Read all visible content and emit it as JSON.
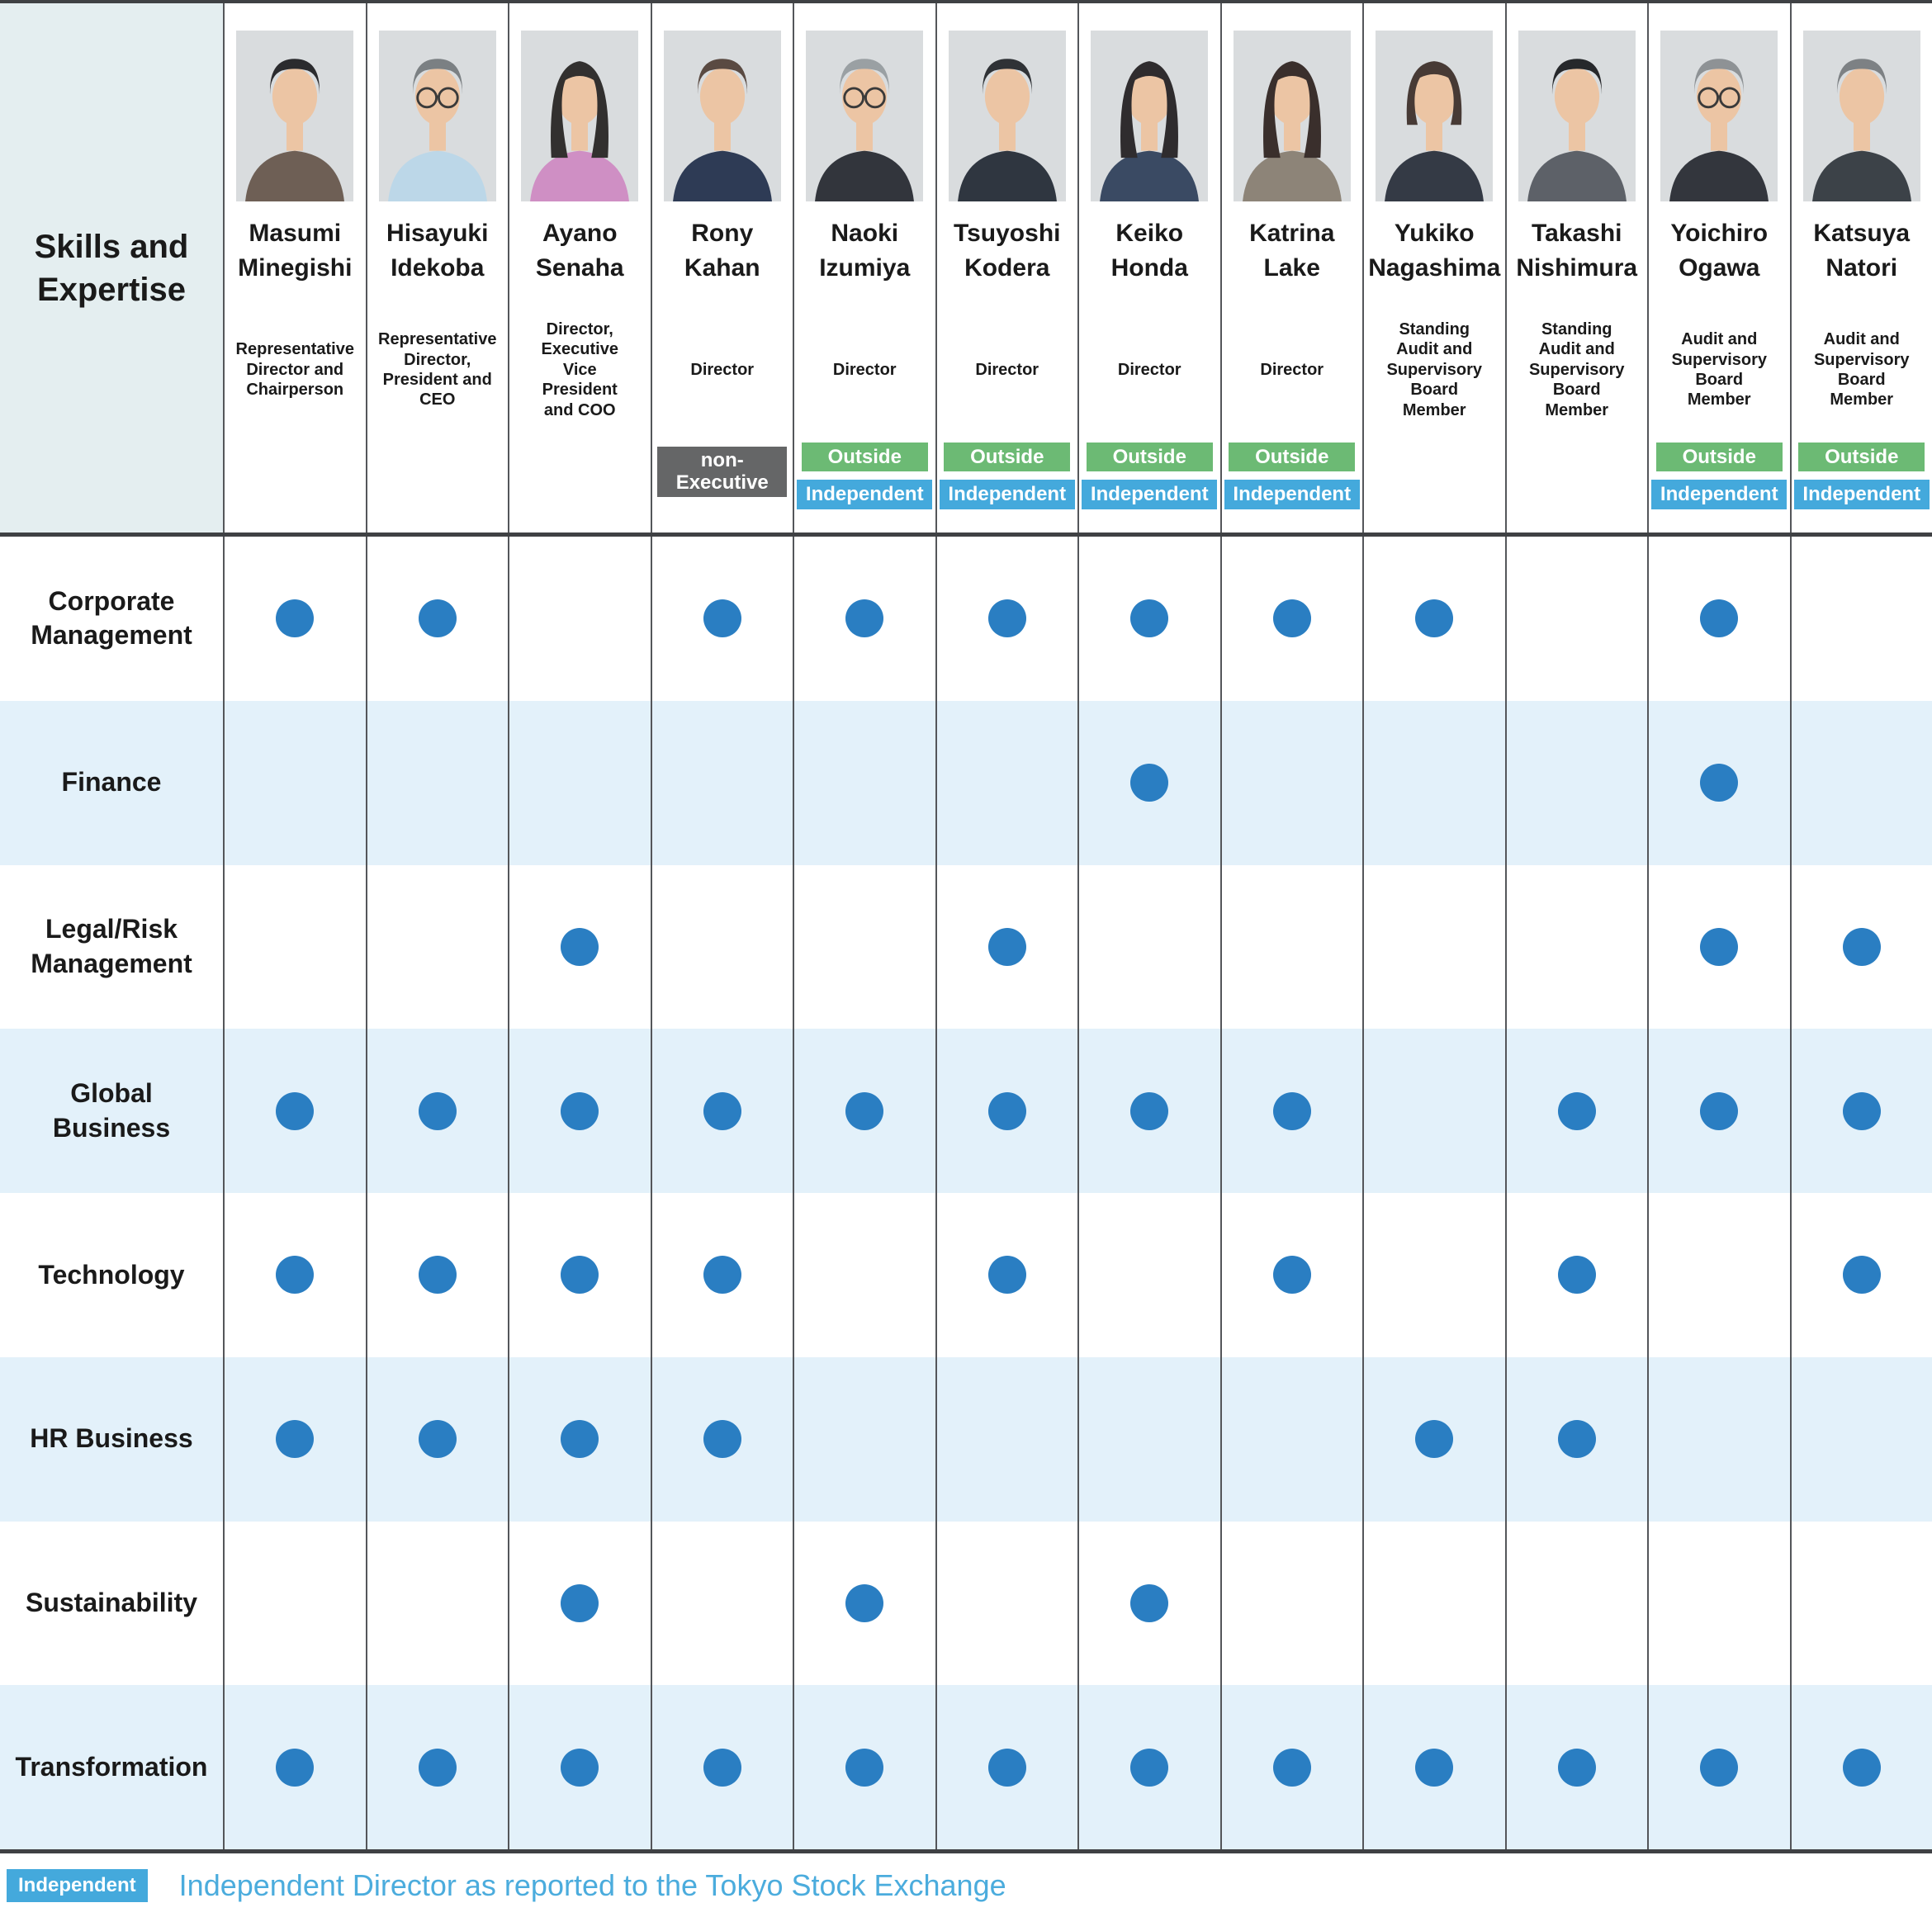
{
  "title": "Skills and Expertise",
  "badge_labels": {
    "outside": "Outside",
    "independent": "Independent",
    "non_executive_lines": [
      "non-",
      "Executive"
    ]
  },
  "members": [
    {
      "name": "Masumi Minegishi",
      "name_lines": [
        "Masumi",
        "Minegishi"
      ],
      "title": "Representative Director and Chairperson",
      "title_lines": [
        "Representative",
        "Director and",
        "Chairperson"
      ],
      "badges": [],
      "photo": {
        "hair": "#2B2B2E",
        "hairstyle": "short",
        "suit": "#6E5F55",
        "glasses": false
      }
    },
    {
      "name": "Hisayuki Idekoba",
      "name_lines": [
        "Hisayuki",
        "Idekoba"
      ],
      "title": "Representative Director, President and CEO",
      "title_lines": [
        "Representative",
        "Director,",
        "President and",
        "CEO"
      ],
      "badges": [],
      "photo": {
        "hair": "#7B8083",
        "hairstyle": "short",
        "suit": "#BCD7E8",
        "glasses": true
      }
    },
    {
      "name": "Ayano Senaha",
      "name_lines": [
        "Ayano",
        "Senaha"
      ],
      "title": "Director, Executive Vice President and COO",
      "title_lines": [
        "Director,",
        "Executive",
        "Vice",
        "President",
        "and COO"
      ],
      "badges": [],
      "photo": {
        "hair": "#32302F",
        "hairstyle": "long",
        "suit": "#CF8FC4",
        "glasses": false
      }
    },
    {
      "name": "Rony Kahan",
      "name_lines": [
        "Rony",
        "Kahan"
      ],
      "title": "Director",
      "title_lines": [
        "Director"
      ],
      "badges": [
        "non_executive"
      ],
      "photo": {
        "hair": "#5A4A42",
        "hairstyle": "short",
        "suit": "#2E3B55",
        "glasses": false
      }
    },
    {
      "name": "Naoki Izumiya",
      "name_lines": [
        "Naoki",
        "Izumiya"
      ],
      "title": "Director",
      "title_lines": [
        "Director"
      ],
      "badges": [
        "outside",
        "independent"
      ],
      "photo": {
        "hair": "#9AA0A3",
        "hairstyle": "short",
        "suit": "#32353C",
        "glasses": true
      }
    },
    {
      "name": "Tsuyoshi Kodera",
      "name_lines": [
        "Tsuyoshi",
        "Kodera"
      ],
      "title": "Director",
      "title_lines": [
        "Director"
      ],
      "badges": [
        "outside",
        "independent"
      ],
      "photo": {
        "hair": "#2F3236",
        "hairstyle": "short",
        "suit": "#2F3640",
        "glasses": false
      }
    },
    {
      "name": "Keiko Honda",
      "name_lines": [
        "Keiko",
        "Honda"
      ],
      "title": "Director",
      "title_lines": [
        "Director"
      ],
      "badges": [
        "outside",
        "independent"
      ],
      "photo": {
        "hair": "#2F2C2E",
        "hairstyle": "long",
        "suit": "#3A4A63",
        "glasses": false
      }
    },
    {
      "name": "Katrina Lake",
      "name_lines": [
        "Katrina",
        "Lake"
      ],
      "title": "Director",
      "title_lines": [
        "Director"
      ],
      "badges": [
        "outside",
        "independent"
      ],
      "photo": {
        "hair": "#3A2F2C",
        "hairstyle": "long",
        "suit": "#8D8478",
        "glasses": false
      }
    },
    {
      "name": "Yukiko Nagashima",
      "name_lines": [
        "Yukiko",
        "Nagashima"
      ],
      "title": "Standing Audit and Supervisory Board Member",
      "title_lines": [
        "Standing",
        "Audit and",
        "Supervisory",
        "Board",
        "Member"
      ],
      "badges": [],
      "photo": {
        "hair": "#473A35",
        "hairstyle": "bob",
        "suit": "#343A45",
        "glasses": false
      }
    },
    {
      "name": "Takashi Nishimura",
      "name_lines": [
        "Takashi",
        "Nishimura"
      ],
      "title": "Standing Audit and Supervisory Board Member",
      "title_lines": [
        "Standing",
        "Audit and",
        "Supervisory",
        "Board",
        "Member"
      ],
      "badges": [],
      "photo": {
        "hair": "#26282B",
        "hairstyle": "short",
        "suit": "#5D6168",
        "glasses": false
      }
    },
    {
      "name": "Yoichiro Ogawa",
      "name_lines": [
        "Yoichiro",
        "Ogawa"
      ],
      "title": "Audit and Supervisory Board Member",
      "title_lines": [
        "Audit and",
        "Supervisory",
        "Board",
        "Member"
      ],
      "badges": [
        "outside",
        "independent"
      ],
      "photo": {
        "hair": "#8E9295",
        "hairstyle": "short",
        "suit": "#33363D",
        "glasses": true
      }
    },
    {
      "name": "Katsuya Natori",
      "name_lines": [
        "Katsuya",
        "Natori"
      ],
      "title": "Audit and Supervisory Board Member",
      "title_lines": [
        "Audit and",
        "Supervisory",
        "Board",
        "Member"
      ],
      "badges": [
        "outside",
        "independent"
      ],
      "photo": {
        "hair": "#7D8184",
        "hairstyle": "short",
        "suit": "#3C4248",
        "glasses": false
      }
    }
  ],
  "skills": [
    {
      "label": "Corporate Management",
      "label_lines": [
        "Corporate",
        "Management"
      ]
    },
    {
      "label": "Finance",
      "label_lines": [
        "Finance"
      ]
    },
    {
      "label": "Legal/Risk Management",
      "label_lines": [
        "Legal/Risk",
        "Management"
      ]
    },
    {
      "label": "Global Business",
      "label_lines": [
        "Global",
        "Business"
      ]
    },
    {
      "label": "Technology",
      "label_lines": [
        "Technology"
      ]
    },
    {
      "label": "HR Business",
      "label_lines": [
        "HR Business"
      ]
    },
    {
      "label": "Sustainability",
      "label_lines": [
        "Sustainability"
      ]
    },
    {
      "label": "Transformation",
      "label_lines": [
        "Transformation"
      ]
    }
  ],
  "chart_data": {
    "type": "table",
    "title": "Skills and Expertise",
    "columns": [
      "Masumi Minegishi",
      "Hisayuki Idekoba",
      "Ayano Senaha",
      "Rony Kahan",
      "Naoki Izumiya",
      "Tsuyoshi Kodera",
      "Keiko Honda",
      "Katrina Lake",
      "Yukiko Nagashima",
      "Takashi Nishimura",
      "Yoichiro Ogawa",
      "Katsuya Natori"
    ],
    "rows": [
      "Corporate Management",
      "Finance",
      "Legal/Risk Management",
      "Global Business",
      "Technology",
      "HR Business",
      "Sustainability",
      "Transformation"
    ],
    "matrix": [
      [
        1,
        1,
        0,
        1,
        1,
        1,
        1,
        1,
        1,
        0,
        1,
        0
      ],
      [
        0,
        0,
        0,
        0,
        0,
        0,
        1,
        0,
        0,
        0,
        1,
        0
      ],
      [
        0,
        0,
        1,
        0,
        0,
        1,
        0,
        0,
        0,
        0,
        1,
        1
      ],
      [
        1,
        1,
        1,
        1,
        1,
        1,
        1,
        1,
        0,
        1,
        1,
        1
      ],
      [
        1,
        1,
        1,
        1,
        0,
        1,
        0,
        1,
        0,
        1,
        0,
        1
      ],
      [
        1,
        1,
        1,
        1,
        0,
        0,
        0,
        0,
        1,
        1,
        0,
        0
      ],
      [
        0,
        0,
        1,
        0,
        1,
        0,
        1,
        0,
        0,
        0,
        0,
        0
      ],
      [
        1,
        1,
        1,
        1,
        1,
        1,
        1,
        1,
        1,
        1,
        1,
        1
      ]
    ]
  },
  "footer": {
    "badge": "Independent",
    "text": "Independent Director as reported to the Tokyo Stock Exchange"
  },
  "colors": {
    "dot": "#2A7EC2",
    "band": "#E3F1FA",
    "corner_bg": "#E4EEF0",
    "outside_badge": "#6CBA74",
    "independent_badge": "#44A9DC",
    "non_executive_badge": "#656667",
    "footer_text": "#4BACDD",
    "grid_line": "#54565A",
    "outer_border": "#3F4144",
    "photo_bg": "#D9DCDE"
  }
}
